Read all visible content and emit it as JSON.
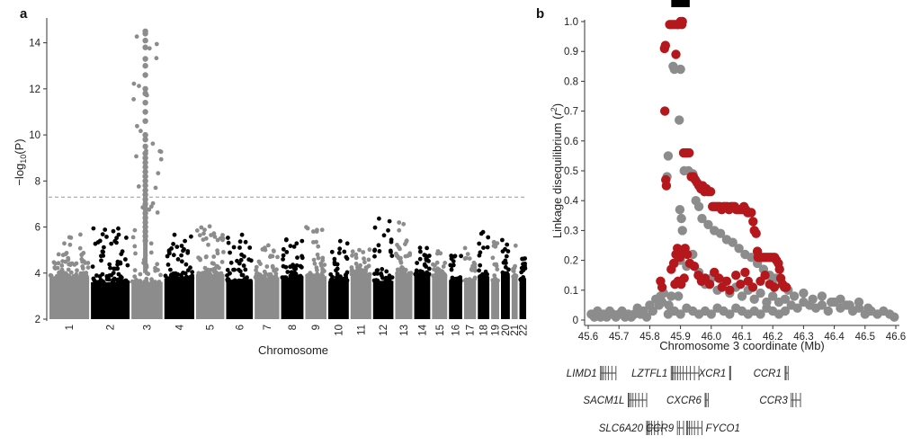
{
  "chart_data": [
    {
      "type": "scatter",
      "panel_label": "a",
      "subtype": "manhattan",
      "xlabel": "Chromosome",
      "ylabel_prefix": "−log",
      "ylabel_sub": "10",
      "ylabel_suffix": "(P)",
      "ylim": [
        2,
        15
      ],
      "yticks": [
        2,
        4,
        6,
        8,
        10,
        12,
        14
      ],
      "threshold": 7.3,
      "grid": false,
      "legend": "none",
      "colors": {
        "odd": "#8c8c8c",
        "even": "#000000",
        "threshold_line": "#999999"
      },
      "chromosomes": [
        {
          "chr": "1",
          "label": "1",
          "len": 249,
          "maxlog": 5.7
        },
        {
          "chr": "2",
          "label": "2",
          "len": 243,
          "maxlog": 6.0
        },
        {
          "chr": "3",
          "label": "3",
          "len": 198,
          "maxlog": 14.5
        },
        {
          "chr": "4",
          "label": "4",
          "len": 190,
          "maxlog": 5.8
        },
        {
          "chr": "5",
          "label": "5",
          "len": 181,
          "maxlog": 6.1
        },
        {
          "chr": "6",
          "label": "6",
          "len": 171,
          "maxlog": 6.1
        },
        {
          "chr": "7",
          "label": "7",
          "len": 159,
          "maxlog": 5.3
        },
        {
          "chr": "8",
          "label": "8",
          "len": 145,
          "maxlog": 5.6
        },
        {
          "chr": "9",
          "label": "9",
          "len": 138,
          "maxlog": 6.5
        },
        {
          "chr": "10",
          "label": "10",
          "len": 134,
          "maxlog": 5.6
        },
        {
          "chr": "11",
          "label": "11",
          "len": 135,
          "maxlog": 5.2
        },
        {
          "chr": "12",
          "label": "12",
          "len": 133,
          "maxlog": 6.4
        },
        {
          "chr": "13",
          "label": "13",
          "len": 114,
          "maxlog": 6.2
        },
        {
          "chr": "14",
          "label": "14",
          "len": 107,
          "maxlog": 5.5
        },
        {
          "chr": "15",
          "label": "15",
          "len": 102,
          "maxlog": 5.0
        },
        {
          "chr": "16",
          "label": "16",
          "len": 90,
          "maxlog": 5.3
        },
        {
          "chr": "17",
          "label": "17",
          "len": 83,
          "maxlog": 5.4
        },
        {
          "chr": "18",
          "label": "18",
          "len": 80,
          "maxlog": 6.0
        },
        {
          "chr": "19",
          "label": "19",
          "len": 59,
          "maxlog": 5.5
        },
        {
          "chr": "20",
          "label": "20",
          "len": 64,
          "maxlog": 5.5
        },
        {
          "chr": "21",
          "label": "21",
          "len": 47,
          "maxlog": 6.1
        },
        {
          "chr": "22",
          "label": "22",
          "len": 51,
          "maxlog": 4.8
        }
      ],
      "chr3_peak_values": [
        14.5,
        14.4,
        14.1,
        13.8,
        13.3,
        13.0,
        12.6,
        12.0,
        11.8,
        11.4,
        11.0,
        10.6,
        10.0,
        9.8,
        9.5,
        9.2,
        9.0,
        8.8,
        8.6,
        8.4,
        8.2,
        8.0,
        7.8,
        7.6,
        7.4,
        7.2,
        7.0,
        6.8,
        6.6,
        6.4,
        6.2,
        6.0,
        5.8,
        5.6,
        5.4
      ]
    },
    {
      "type": "scatter",
      "panel_label": "b",
      "xlabel": "Chromosome 3 coordinate (Mb)",
      "ylabel_prefix": "Linkage disequilibrium (",
      "ylabel_var": "r",
      "ylabel_sup": "2",
      "ylabel_suffix": ")",
      "xlim": [
        45.6,
        46.6
      ],
      "ylim": [
        0,
        1.0
      ],
      "xticks": [
        "45.6",
        "45.7",
        "45.8",
        "45.9",
        "46.0",
        "46.1",
        "46.2",
        "46.3",
        "46.4",
        "46.5",
        "46.6"
      ],
      "yticks": [
        "0",
        "0.1",
        "0.2",
        "0.3",
        "0.4",
        "0.5",
        "0.6",
        "0.7",
        "0.8",
        "0.9",
        "1.0"
      ],
      "grid": false,
      "legend": "none",
      "colors": {
        "red": "#b5181c",
        "grey": "#8c8c8c"
      },
      "highlight_bar": [
        45.87,
        45.93
      ],
      "red_points": [
        [
          45.848,
          0.91
        ],
        [
          45.851,
          0.92
        ],
        [
          45.849,
          0.7
        ],
        [
          45.852,
          0.47
        ],
        [
          45.854,
          0.45
        ],
        [
          45.865,
          0.99
        ],
        [
          45.872,
          0.99
        ],
        [
          45.88,
          0.99
        ],
        [
          45.888,
          0.99
        ],
        [
          45.894,
          0.99
        ],
        [
          45.9,
          1.0
        ],
        [
          45.906,
          1.0
        ],
        [
          45.904,
          0.99
        ],
        [
          45.885,
          0.89
        ],
        [
          45.91,
          0.56
        ],
        [
          45.916,
          0.56
        ],
        [
          45.922,
          0.56
        ],
        [
          45.928,
          0.56
        ],
        [
          45.935,
          0.48
        ],
        [
          45.942,
          0.48
        ],
        [
          45.948,
          0.47
        ],
        [
          45.954,
          0.46
        ],
        [
          45.96,
          0.45
        ],
        [
          45.966,
          0.44
        ],
        [
          45.972,
          0.45
        ],
        [
          45.978,
          0.43
        ],
        [
          45.984,
          0.44
        ],
        [
          45.99,
          0.43
        ],
        [
          45.998,
          0.43
        ],
        [
          46.004,
          0.38
        ],
        [
          46.01,
          0.38
        ],
        [
          46.016,
          0.38
        ],
        [
          46.022,
          0.38
        ],
        [
          46.028,
          0.38
        ],
        [
          46.034,
          0.37
        ],
        [
          46.04,
          0.38
        ],
        [
          46.046,
          0.38
        ],
        [
          46.052,
          0.38
        ],
        [
          46.058,
          0.37
        ],
        [
          46.064,
          0.38
        ],
        [
          46.07,
          0.38
        ],
        [
          46.076,
          0.38
        ],
        [
          46.082,
          0.37
        ],
        [
          46.088,
          0.37
        ],
        [
          46.094,
          0.37
        ],
        [
          46.1,
          0.37
        ],
        [
          46.106,
          0.38
        ],
        [
          46.112,
          0.37
        ],
        [
          46.118,
          0.36
        ],
        [
          46.124,
          0.36
        ],
        [
          46.13,
          0.36
        ],
        [
          46.136,
          0.33
        ],
        [
          46.14,
          0.3
        ],
        [
          46.146,
          0.29
        ],
        [
          46.15,
          0.23
        ],
        [
          46.152,
          0.21
        ],
        [
          46.158,
          0.21
        ],
        [
          46.164,
          0.21
        ],
        [
          46.17,
          0.21
        ],
        [
          46.176,
          0.21
        ],
        [
          46.182,
          0.21
        ],
        [
          46.188,
          0.21
        ],
        [
          46.194,
          0.21
        ],
        [
          46.2,
          0.21
        ],
        [
          46.206,
          0.21
        ],
        [
          46.212,
          0.2
        ],
        [
          46.218,
          0.19
        ],
        [
          46.222,
          0.17
        ],
        [
          46.226,
          0.14
        ],
        [
          46.232,
          0.12
        ],
        [
          46.238,
          0.11
        ],
        [
          46.244,
          0.11
        ],
        [
          45.835,
          0.13
        ],
        [
          45.84,
          0.11
        ],
        [
          45.87,
          0.17
        ],
        [
          45.878,
          0.19
        ],
        [
          45.885,
          0.22
        ],
        [
          45.89,
          0.24
        ],
        [
          45.898,
          0.21
        ],
        [
          45.908,
          0.23
        ],
        [
          45.915,
          0.24
        ],
        [
          45.922,
          0.22
        ],
        [
          45.882,
          0.12
        ],
        [
          45.892,
          0.13
        ],
        [
          45.902,
          0.12
        ],
        [
          45.912,
          0.14
        ],
        [
          45.93,
          0.19
        ],
        [
          45.945,
          0.18
        ],
        [
          45.958,
          0.15
        ],
        [
          45.968,
          0.13
        ],
        [
          45.98,
          0.14
        ],
        [
          45.995,
          0.12
        ],
        [
          46.01,
          0.16
        ],
        [
          46.025,
          0.14
        ],
        [
          46.035,
          0.11
        ],
        [
          46.05,
          0.13
        ],
        [
          46.06,
          0.1
        ],
        [
          46.08,
          0.15
        ],
        [
          46.095,
          0.12
        ],
        [
          46.11,
          0.16
        ],
        [
          46.12,
          0.13
        ],
        [
          46.135,
          0.11
        ],
        [
          46.16,
          0.13
        ],
        [
          46.175,
          0.15
        ],
        [
          46.19,
          0.12
        ],
        [
          46.205,
          0.11
        ]
      ],
      "grey_points": [
        [
          45.61,
          0.02
        ],
        [
          45.62,
          0.01
        ],
        [
          45.63,
          0.03
        ],
        [
          45.64,
          0.01
        ],
        [
          45.65,
          0.02
        ],
        [
          45.66,
          0.01
        ],
        [
          45.67,
          0.03
        ],
        [
          45.68,
          0.02
        ],
        [
          45.69,
          0.01
        ],
        [
          45.7,
          0.02
        ],
        [
          45.71,
          0.03
        ],
        [
          45.72,
          0.01
        ],
        [
          45.73,
          0.02
        ],
        [
          45.74,
          0.01
        ],
        [
          45.75,
          0.02
        ],
        [
          45.76,
          0.04
        ],
        [
          45.77,
          0.02
        ],
        [
          45.78,
          0.03
        ],
        [
          45.79,
          0.01
        ],
        [
          45.8,
          0.05
        ],
        [
          45.81,
          0.03
        ],
        [
          45.82,
          0.07
        ],
        [
          45.83,
          0.05
        ],
        [
          45.835,
          0.08
        ],
        [
          45.84,
          0.06
        ],
        [
          45.845,
          0.09
        ],
        [
          45.86,
          0.55
        ],
        [
          45.856,
          0.48
        ],
        [
          45.862,
          0.05
        ],
        [
          45.87,
          0.08
        ],
        [
          45.876,
          0.85
        ],
        [
          45.88,
          0.84
        ],
        [
          45.9,
          0.84
        ],
        [
          45.896,
          0.67
        ],
        [
          45.898,
          0.37
        ],
        [
          45.903,
          0.34
        ],
        [
          45.906,
          0.3
        ],
        [
          45.893,
          0.08
        ],
        [
          45.912,
          0.5
        ],
        [
          45.926,
          0.5
        ],
        [
          45.94,
          0.49
        ],
        [
          45.95,
          0.4
        ],
        [
          45.96,
          0.38
        ],
        [
          45.97,
          0.34
        ],
        [
          45.99,
          0.32
        ],
        [
          46.01,
          0.3
        ],
        [
          46.03,
          0.29
        ],
        [
          46.05,
          0.27
        ],
        [
          46.07,
          0.26
        ],
        [
          46.09,
          0.24
        ],
        [
          46.11,
          0.22
        ],
        [
          46.13,
          0.21
        ],
        [
          46.15,
          0.19
        ],
        [
          46.17,
          0.17
        ],
        [
          46.19,
          0.15
        ],
        [
          46.21,
          0.14
        ],
        [
          46.23,
          0.12
        ],
        [
          46.25,
          0.1
        ],
        [
          45.88,
          0.19
        ],
        [
          45.9,
          0.2
        ],
        [
          45.92,
          0.18
        ],
        [
          45.94,
          0.22
        ],
        [
          45.96,
          0.16
        ],
        [
          45.98,
          0.12
        ],
        [
          46.0,
          0.14
        ],
        [
          46.02,
          0.1
        ],
        [
          46.04,
          0.13
        ],
        [
          46.06,
          0.09
        ],
        [
          46.08,
          0.11
        ],
        [
          46.1,
          0.08
        ],
        [
          46.12,
          0.1
        ],
        [
          46.14,
          0.07
        ],
        [
          46.16,
          0.09
        ],
        [
          46.18,
          0.06
        ],
        [
          46.2,
          0.08
        ],
        [
          46.22,
          0.06
        ],
        [
          46.24,
          0.07
        ],
        [
          45.86,
          0.02
        ],
        [
          45.88,
          0.03
        ],
        [
          45.9,
          0.02
        ],
        [
          45.92,
          0.04
        ],
        [
          45.94,
          0.03
        ],
        [
          45.96,
          0.02
        ],
        [
          45.98,
          0.03
        ],
        [
          46.0,
          0.02
        ],
        [
          46.02,
          0.04
        ],
        [
          46.04,
          0.03
        ],
        [
          46.06,
          0.02
        ],
        [
          46.08,
          0.04
        ],
        [
          46.1,
          0.03
        ],
        [
          46.12,
          0.02
        ],
        [
          46.14,
          0.03
        ],
        [
          46.16,
          0.02
        ],
        [
          46.18,
          0.04
        ],
        [
          46.2,
          0.03
        ],
        [
          46.22,
          0.02
        ],
        [
          46.24,
          0.03
        ],
        [
          46.26,
          0.05
        ],
        [
          46.28,
          0.04
        ],
        [
          46.3,
          0.06
        ],
        [
          46.32,
          0.05
        ],
        [
          46.34,
          0.04
        ],
        [
          46.36,
          0.05
        ],
        [
          46.38,
          0.03
        ],
        [
          46.4,
          0.06
        ],
        [
          46.42,
          0.04
        ],
        [
          46.44,
          0.05
        ],
        [
          46.46,
          0.03
        ],
        [
          46.48,
          0.04
        ],
        [
          46.5,
          0.02
        ],
        [
          46.52,
          0.03
        ],
        [
          46.54,
          0.02
        ],
        [
          46.56,
          0.03
        ],
        [
          46.58,
          0.02
        ],
        [
          46.595,
          0.01
        ],
        [
          46.27,
          0.08
        ],
        [
          46.3,
          0.09
        ],
        [
          46.33,
          0.07
        ],
        [
          46.36,
          0.08
        ],
        [
          46.39,
          0.06
        ],
        [
          46.42,
          0.07
        ],
        [
          46.45,
          0.05
        ],
        [
          46.48,
          0.06
        ],
        [
          46.51,
          0.04
        ]
      ],
      "genes": [
        {
          "name": "LIMD1",
          "start": 45.64,
          "end": 45.69,
          "row": 0
        },
        {
          "name": "LZTFL1",
          "start": 45.87,
          "end": 45.96,
          "row": 0
        },
        {
          "name": "XCR1",
          "start": 46.06,
          "end": 46.063,
          "row": 0
        },
        {
          "name": "CCR1",
          "start": 46.24,
          "end": 46.25,
          "row": 0
        },
        {
          "name": "SACM1L",
          "start": 45.73,
          "end": 45.79,
          "row": 1
        },
        {
          "name": "CXCR6",
          "start": 45.98,
          "end": 45.99,
          "row": 1
        },
        {
          "name": "CCR3",
          "start": 46.26,
          "end": 46.29,
          "row": 1
        },
        {
          "name": "SLC6A20",
          "start": 45.79,
          "end": 45.84,
          "row": 2
        },
        {
          "name": "CCR9",
          "start": 45.89,
          "end": 45.91,
          "row": 2
        },
        {
          "name": "FYCO1",
          "start": 45.92,
          "end": 45.97,
          "row": 2
        }
      ]
    }
  ]
}
